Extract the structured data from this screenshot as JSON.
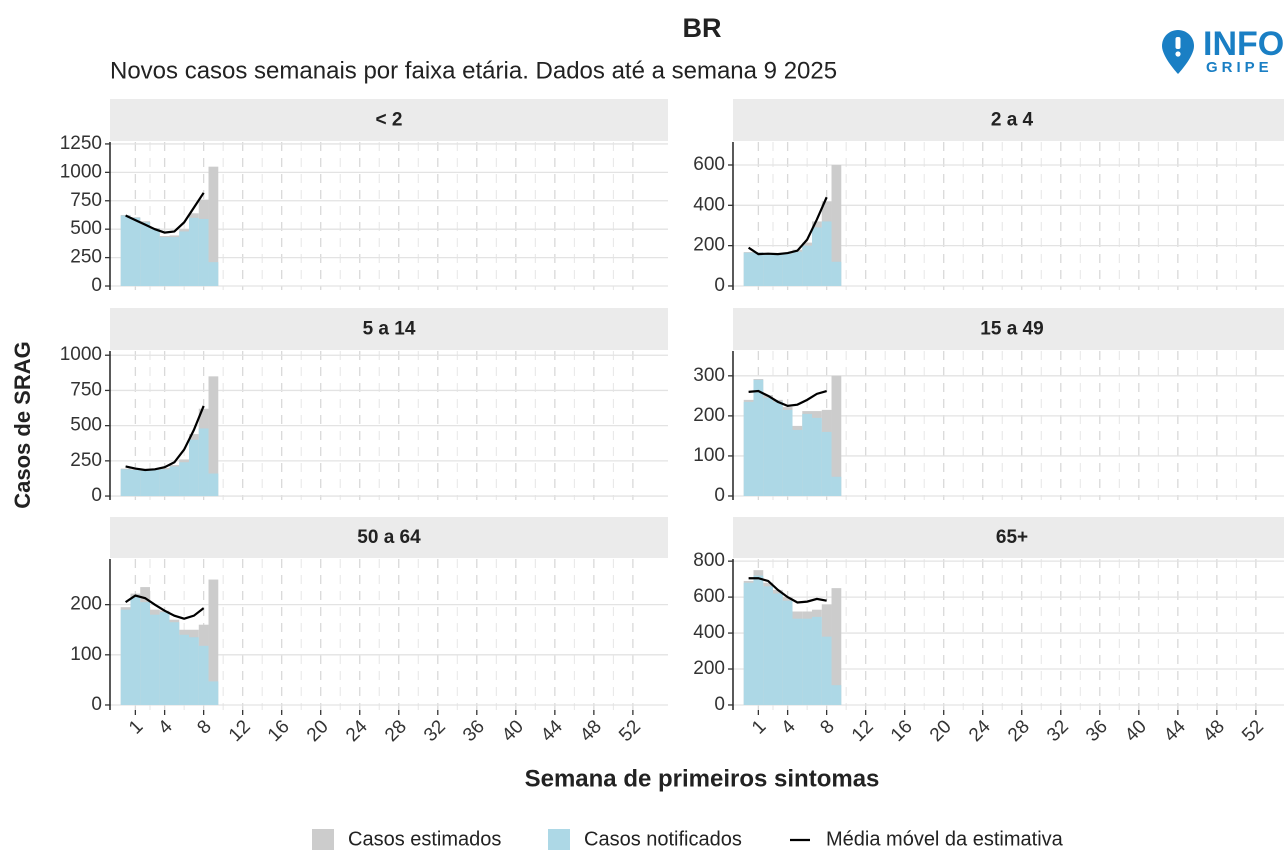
{
  "header": {
    "title": "BR",
    "subtitle": "Novos casos semanais por faixa etária. Dados até a semana 9 2025",
    "logo": {
      "top": "INFO",
      "bottom": "GRIPE"
    }
  },
  "xlabel": "Semana de primeiros sintomas",
  "ylabel": "Casos de SRAG",
  "legend": [
    {
      "name": "Casos estimados",
      "color": "#cccccc",
      "kind": "bar"
    },
    {
      "name": "Casos notificados",
      "color": "#add8e6",
      "kind": "bar"
    },
    {
      "name": "Média móvel da estimativa",
      "color": "#000000",
      "kind": "line"
    }
  ],
  "chart_data": [
    {
      "type": "bar",
      "title": "< 2",
      "x": [
        0,
        1,
        2,
        3,
        4,
        5,
        6,
        7,
        8,
        9
      ],
      "series": [
        {
          "values": [
            625,
            605,
            570,
            510,
            440,
            445,
            500,
            640,
            760,
            1050
          ]
        },
        {
          "values": [
            620,
            600,
            560,
            500,
            430,
            430,
            480,
            600,
            590,
            210
          ]
        },
        {
          "values": [
            620,
            580,
            540,
            500,
            470,
            480,
            560,
            690,
            820,
            null
          ]
        }
      ],
      "xlim": [
        -1.6,
        55.6
      ],
      "xticks": [
        1,
        4,
        8,
        12,
        16,
        20,
        24,
        28,
        32,
        36,
        40,
        44,
        48,
        52
      ],
      "ylim": [
        -35,
        1267
      ],
      "yticks": [
        0,
        250,
        500,
        750,
        1000,
        1250
      ],
      "grid": true
    },
    {
      "type": "bar",
      "title": "2 a 4",
      "x": [
        0,
        1,
        2,
        3,
        4,
        5,
        6,
        7,
        8,
        9
      ],
      "series": [
        {
          "values": [
            168,
            168,
            163,
            163,
            165,
            180,
            215,
            320,
            420,
            600
          ]
        },
        {
          "values": [
            165,
            165,
            160,
            160,
            160,
            170,
            200,
            290,
            320,
            120
          ]
        },
        {
          "values": [
            190,
            158,
            160,
            158,
            163,
            175,
            230,
            330,
            440,
            null
          ]
        }
      ],
      "xlim": [
        -1.6,
        55.6
      ],
      "xticks": [
        1,
        4,
        8,
        12,
        16,
        20,
        24,
        28,
        32,
        36,
        40,
        44,
        48,
        52
      ],
      "ylim": [
        -20,
        714
      ],
      "yticks": [
        0,
        200,
        400,
        600
      ],
      "grid": true
    },
    {
      "type": "bar",
      "title": "5 a 14",
      "x": [
        0,
        1,
        2,
        3,
        4,
        5,
        6,
        7,
        8,
        9
      ],
      "series": [
        {
          "values": [
            195,
            190,
            185,
            190,
            200,
            220,
            260,
            440,
            620,
            850
          ]
        },
        {
          "values": [
            190,
            185,
            180,
            185,
            190,
            210,
            240,
            400,
            480,
            160
          ]
        },
        {
          "values": [
            210,
            195,
            185,
            190,
            205,
            240,
            330,
            470,
            640,
            null
          ]
        }
      ],
      "xlim": [
        -1.6,
        55.6
      ],
      "xticks": [
        1,
        4,
        8,
        12,
        16,
        20,
        24,
        28,
        32,
        36,
        40,
        44,
        48,
        52
      ],
      "ylim": [
        -28,
        1030
      ],
      "yticks": [
        0,
        250,
        500,
        750,
        1000
      ],
      "grid": true
    },
    {
      "type": "bar",
      "title": "15 a 49",
      "x": [
        0,
        1,
        2,
        3,
        4,
        5,
        6,
        7,
        8,
        9
      ],
      "series": [
        {
          "values": [
            240,
            292,
            252,
            240,
            222,
            175,
            212,
            212,
            215,
            300
          ]
        },
        {
          "values": [
            235,
            290,
            245,
            235,
            215,
            165,
            205,
            195,
            160,
            48
          ]
        },
        {
          "values": [
            260,
            262,
            250,
            235,
            225,
            228,
            240,
            255,
            262,
            null
          ]
        }
      ],
      "xlim": [
        -1.6,
        55.6
      ],
      "xticks": [
        1,
        4,
        8,
        12,
        16,
        20,
        24,
        28,
        32,
        36,
        40,
        44,
        48,
        52
      ],
      "ylim": [
        -10,
        362
      ],
      "yticks": [
        0,
        100,
        200,
        300
      ],
      "grid": true
    },
    {
      "type": "bar",
      "title": "50 a 64",
      "x": [
        0,
        1,
        2,
        3,
        4,
        5,
        6,
        7,
        8,
        9
      ],
      "series": [
        {
          "values": [
            195,
            222,
            235,
            190,
            188,
            170,
            150,
            150,
            160,
            250
          ]
        },
        {
          "values": [
            190,
            215,
            205,
            180,
            185,
            165,
            140,
            135,
            118,
            47
          ]
        },
        {
          "values": [
            205,
            218,
            213,
            200,
            188,
            178,
            172,
            178,
            193,
            null
          ]
        }
      ],
      "xlim": [
        -1.6,
        55.6
      ],
      "xticks": [
        1,
        4,
        8,
        12,
        16,
        20,
        24,
        28,
        32,
        36,
        40,
        44,
        48,
        52
      ],
      "ylim": [
        -10,
        291
      ],
      "yticks": [
        0,
        100,
        200
      ],
      "grid": true
    },
    {
      "type": "bar",
      "title": "65+",
      "x": [
        0,
        1,
        2,
        3,
        4,
        5,
        6,
        7,
        8,
        9
      ],
      "series": [
        {
          "values": [
            690,
            750,
            680,
            640,
            600,
            520,
            520,
            530,
            560,
            650
          ]
        },
        {
          "values": [
            680,
            720,
            660,
            620,
            580,
            480,
            480,
            490,
            380,
            110
          ]
        },
        {
          "values": [
            705,
            705,
            690,
            640,
            600,
            570,
            575,
            590,
            580,
            null
          ]
        }
      ],
      "xlim": [
        -1.6,
        55.6
      ],
      "xticks": [
        1,
        4,
        8,
        12,
        16,
        20,
        24,
        28,
        32,
        36,
        40,
        44,
        48,
        52
      ],
      "ylim": [
        -28,
        812
      ],
      "yticks": [
        0,
        200,
        400,
        600,
        800
      ],
      "grid": true
    }
  ]
}
